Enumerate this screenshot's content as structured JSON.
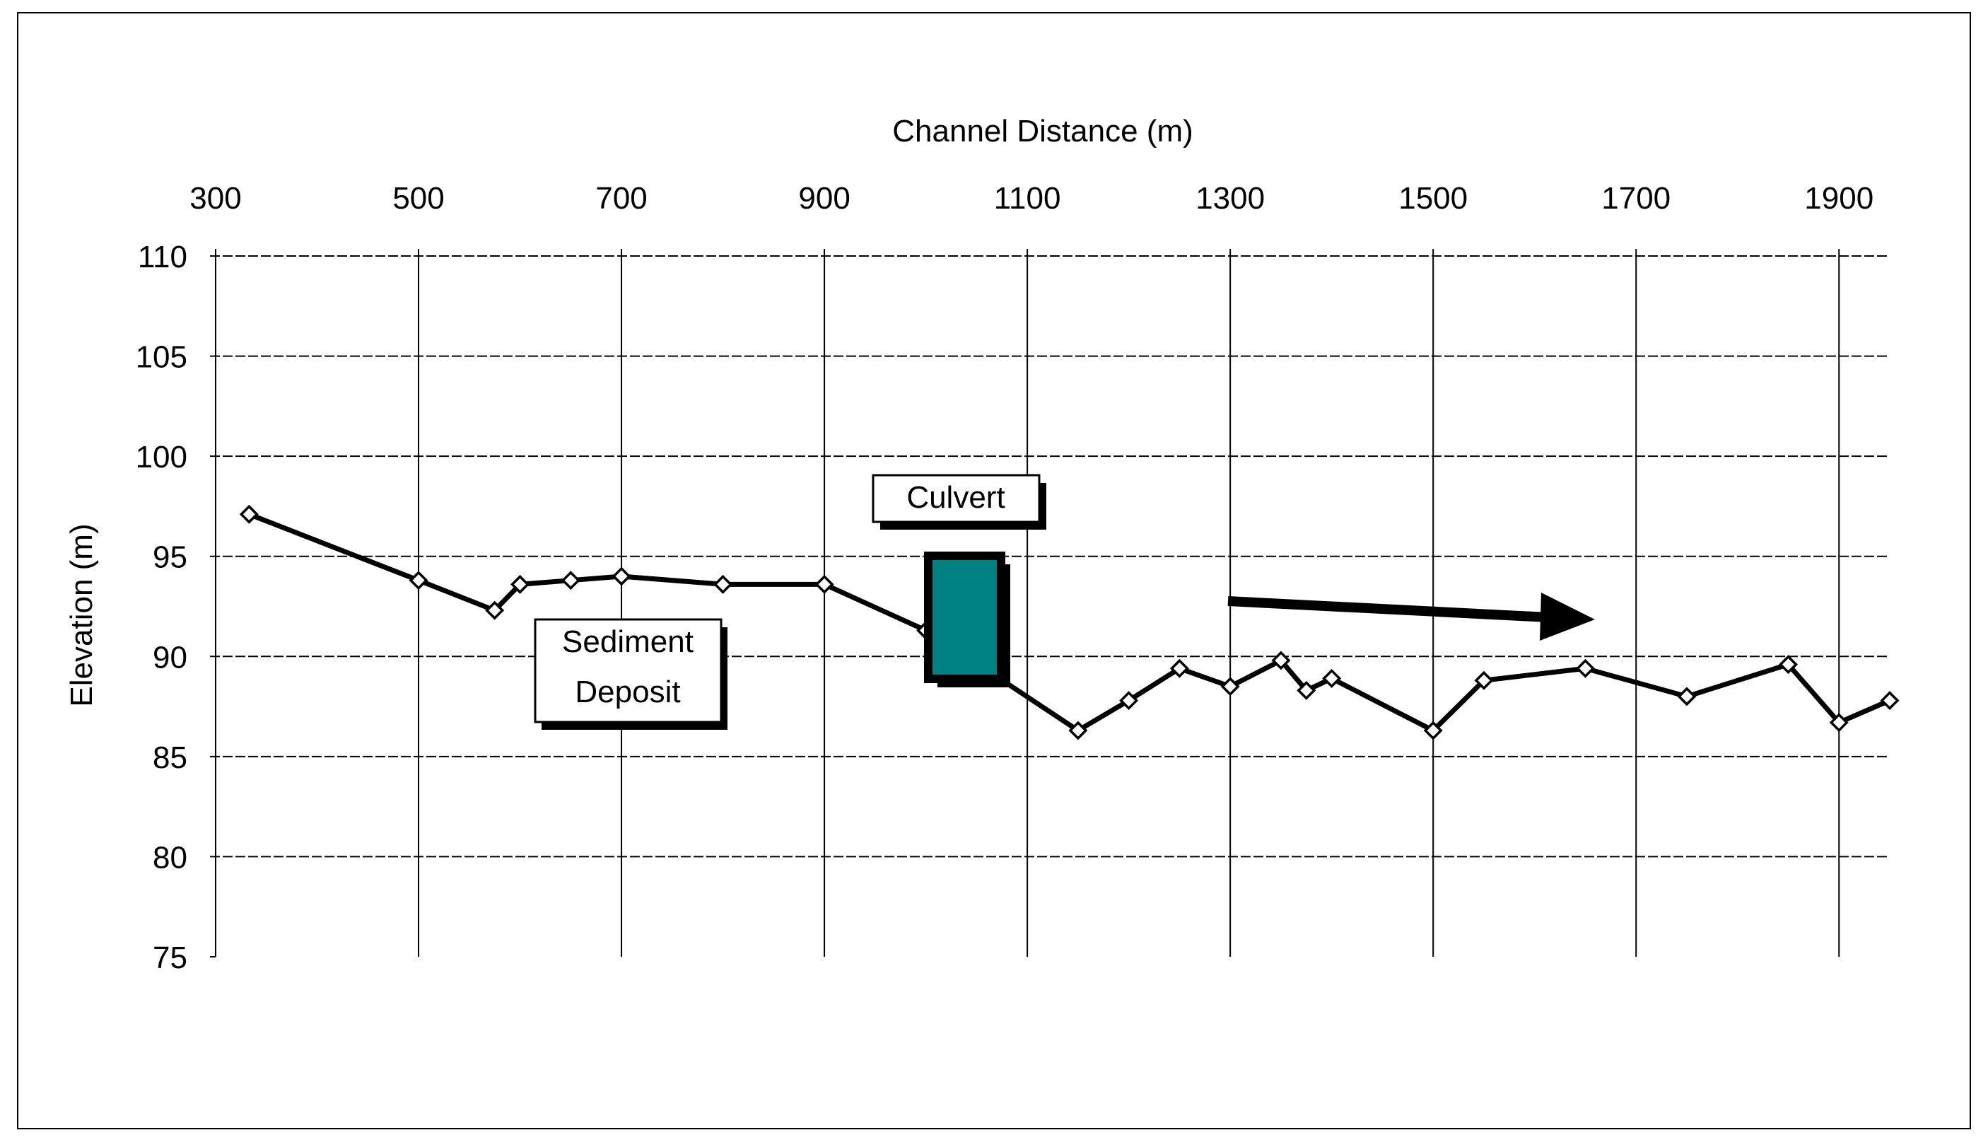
{
  "chart_data": {
    "type": "line",
    "title": "",
    "xlabel": "Channel Distance (m)",
    "ylabel": "Elevation (m)",
    "xlim": [
      300,
      1950
    ],
    "ylim": [
      75,
      110
    ],
    "x_ticks": [
      300,
      500,
      700,
      900,
      1100,
      1300,
      1500,
      1700,
      1900
    ],
    "y_ticks": [
      75,
      80,
      85,
      90,
      95,
      100,
      105,
      110
    ],
    "x_axis_position": "top",
    "grid": true,
    "legend": "none",
    "series": [
      {
        "points": [
          [
            333,
            97.1
          ],
          [
            500,
            93.8
          ],
          [
            575,
            92.3
          ],
          [
            600,
            93.6
          ],
          [
            650,
            93.8
          ],
          [
            700,
            94.0
          ],
          [
            800,
            93.6
          ],
          [
            900,
            93.6
          ],
          [
            1000,
            91.3
          ],
          [
            1040,
            90.0
          ],
          [
            1150,
            86.3
          ],
          [
            1200,
            87.8
          ],
          [
            1250,
            89.4
          ],
          [
            1300,
            88.5
          ],
          [
            1350,
            89.8
          ],
          [
            1375,
            88.3
          ],
          [
            1400,
            88.9
          ],
          [
            1500,
            86.3
          ],
          [
            1550,
            88.8
          ],
          [
            1650,
            89.4
          ],
          [
            1750,
            88.0
          ],
          [
            1850,
            89.6
          ],
          [
            1900,
            86.7
          ],
          [
            1950,
            87.8
          ]
        ],
        "color": "#000000"
      }
    ],
    "annotations": {
      "culvert_label": "Culvert",
      "sediment_label_line1": "Sediment",
      "sediment_label_line2": "Deposit",
      "culvert_color": "#008080"
    }
  }
}
